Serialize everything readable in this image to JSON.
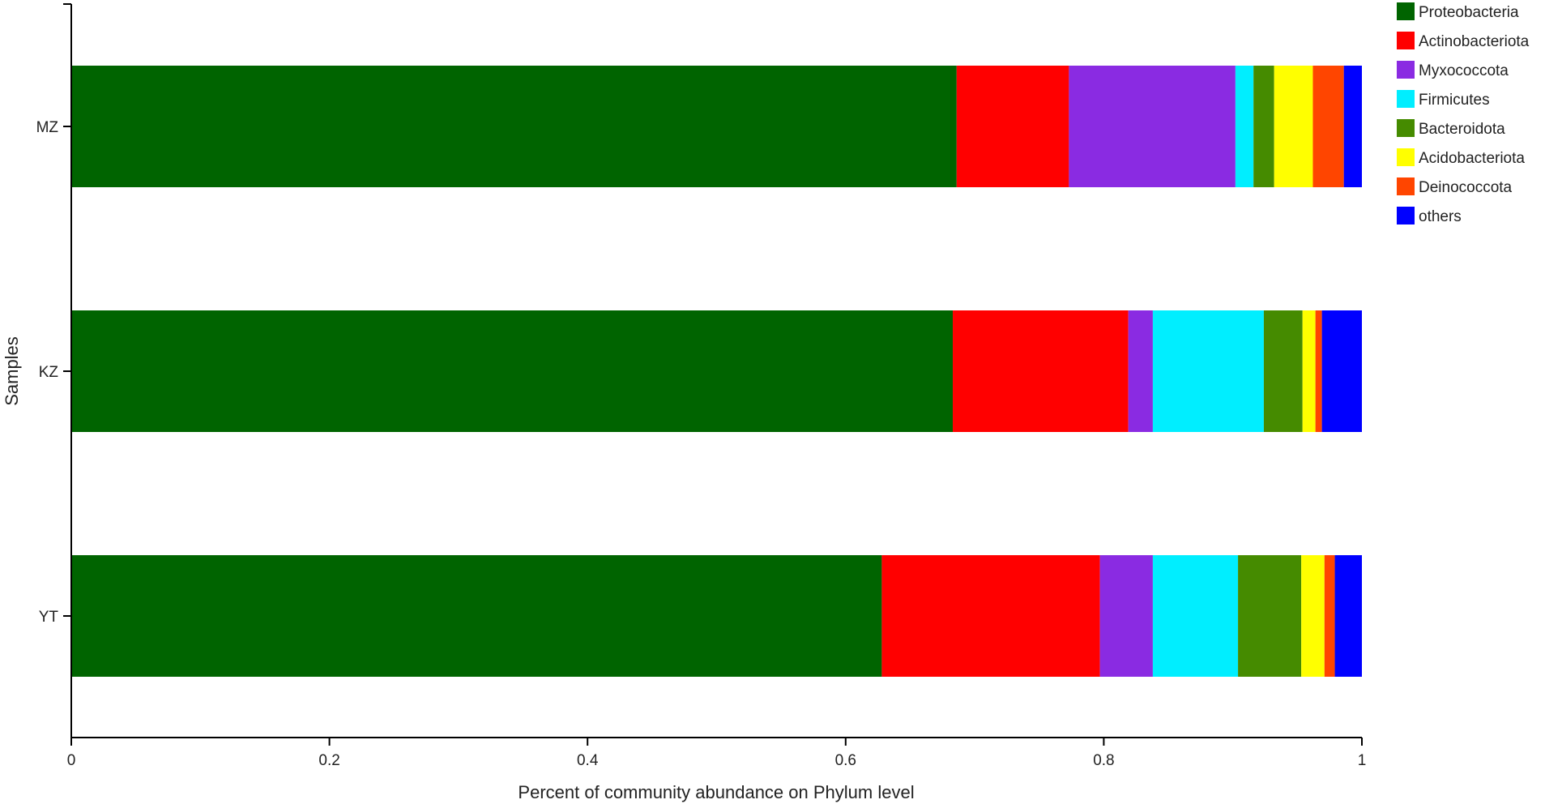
{
  "chart_data": {
    "type": "bar",
    "orientation": "horizontal",
    "stacked": true,
    "categories": [
      "MZ",
      "KZ",
      "YT"
    ],
    "series": [
      {
        "name": "Proteobacteria",
        "color": "#006400",
        "values": [
          0.686,
          0.683,
          0.628
        ]
      },
      {
        "name": "Actinobacteriota",
        "color": "#ff0000",
        "values": [
          0.087,
          0.136,
          0.169
        ]
      },
      {
        "name": "Myxococcota",
        "color": "#8a2be2",
        "values": [
          0.129,
          0.019,
          0.041
        ]
      },
      {
        "name": "Firmicutes",
        "color": "#00eeff",
        "values": [
          0.014,
          0.086,
          0.066
        ]
      },
      {
        "name": "Bacteroidota",
        "color": "#458b00",
        "values": [
          0.016,
          0.03,
          0.049
        ]
      },
      {
        "name": "Acidobacteriota",
        "color": "#ffff00",
        "values": [
          0.03,
          0.01,
          0.018
        ]
      },
      {
        "name": "Deinococcota",
        "color": "#ff4500",
        "values": [
          0.024,
          0.005,
          0.008
        ]
      },
      {
        "name": "others",
        "color": "#0000ff",
        "values": [
          0.014,
          0.031,
          0.021
        ]
      }
    ],
    "xlim": [
      0,
      1
    ],
    "xticks": [
      "0",
      "0.2",
      "0.4",
      "0.6",
      "0.8",
      "1"
    ],
    "xlabel": "Percent of community abundance on Phylum level",
    "ylabel": "Samples",
    "title": "",
    "grid": false,
    "legend": "top-right"
  }
}
